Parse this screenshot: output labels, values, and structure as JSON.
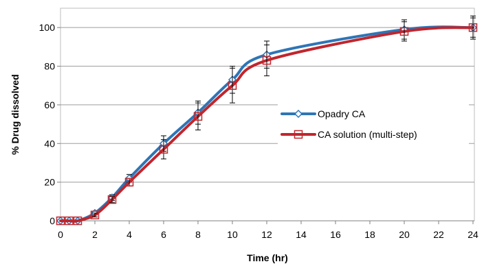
{
  "chart_data": {
    "type": "line",
    "title": "",
    "xlabel": "Time (hr)",
    "ylabel": "% Drug dissolved",
    "xlim": [
      0,
      24
    ],
    "ylim": [
      0,
      110
    ],
    "xticks": [
      0,
      2,
      4,
      6,
      8,
      10,
      12,
      14,
      16,
      18,
      20,
      22,
      24
    ],
    "yticks": [
      0,
      20,
      40,
      60,
      80,
      100
    ],
    "grid": "horizontal",
    "legend_position": "right",
    "series": [
      {
        "name": "Opadry CA",
        "color": "#2E75B6",
        "marker": "diamond",
        "x": [
          0,
          0.5,
          1,
          2,
          3,
          4,
          6,
          8,
          10,
          12,
          20,
          24
        ],
        "y": [
          0,
          0,
          0,
          4,
          12,
          22,
          40,
          56,
          73,
          86,
          99,
          100
        ],
        "err": [
          0,
          0,
          0,
          1,
          1.5,
          2,
          4,
          6,
          7,
          7,
          5,
          6
        ]
      },
      {
        "name": "CA solution (multi-step)",
        "color": "#C0262D",
        "marker": "square",
        "x": [
          0,
          0.5,
          1,
          2,
          3,
          4,
          6,
          8,
          10,
          12,
          20,
          24
        ],
        "y": [
          0,
          0,
          0,
          3,
          11,
          20,
          37,
          54,
          70,
          83,
          98,
          100
        ],
        "err": [
          0,
          0,
          0,
          1,
          1.5,
          2,
          5,
          7,
          9,
          8,
          5,
          5
        ]
      }
    ]
  }
}
